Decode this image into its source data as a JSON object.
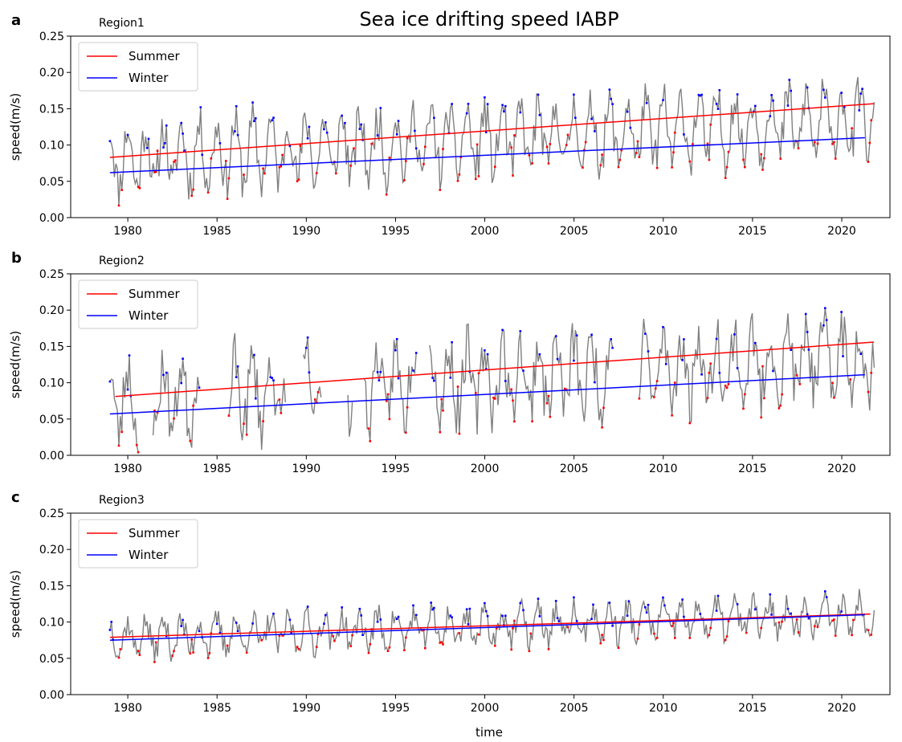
{
  "figure": {
    "title": "Sea ice drifting speed IABP",
    "xlabel": "time"
  },
  "colors": {
    "summer": "#ff0000",
    "winter": "#0000ff",
    "raw": "#808080",
    "axis": "#000000"
  },
  "chart_data": [
    {
      "type": "line",
      "panel_letter": "a",
      "region_label": "Region1",
      "ylabel": "speed(m/s)",
      "xlim": [
        1976.8,
        2022.7
      ],
      "ylim": [
        0.0,
        0.25
      ],
      "xticks": [
        1980,
        1985,
        1990,
        1995,
        2000,
        2005,
        2010,
        2015,
        2020
      ],
      "yticks": [
        0.0,
        0.05,
        0.1,
        0.15,
        0.2,
        0.25
      ],
      "legend": {
        "placement": "upper-left",
        "entries": [
          "Summer",
          "Winter"
        ]
      },
      "series": [
        {
          "name": "Summer",
          "kind": "trend",
          "x": [
            1979.0,
            2021.8
          ],
          "values": [
            0.083,
            0.157
          ]
        },
        {
          "name": "Winter",
          "kind": "trend",
          "x": [
            1979.0,
            2021.3
          ],
          "values": [
            0.062,
            0.11
          ]
        }
      ],
      "monthly": {
        "x_start": 1979.0,
        "x_step": 0.0833,
        "count": 515,
        "mean_start": 0.081,
        "mean_end": 0.135,
        "amplitude": 0.04,
        "noise": 0.03,
        "gaps": [],
        "seed": 11
      }
    },
    {
      "type": "line",
      "panel_letter": "b",
      "region_label": "Region2",
      "ylabel": "speed(m/s)",
      "xlim": [
        1976.8,
        2022.7
      ],
      "ylim": [
        0.0,
        0.25
      ],
      "xticks": [
        1980,
        1985,
        1990,
        1995,
        2000,
        2005,
        2010,
        2015,
        2020
      ],
      "yticks": [
        0.0,
        0.05,
        0.1,
        0.15,
        0.2,
        0.25
      ],
      "legend": {
        "placement": "upper-left",
        "entries": [
          "Summer",
          "Winter"
        ]
      },
      "series": [
        {
          "name": "Summer",
          "kind": "trend",
          "x": [
            1979.3,
            2021.8
          ],
          "values": [
            0.081,
            0.156
          ]
        },
        {
          "name": "Winter",
          "kind": "trend",
          "x": [
            1979.0,
            2021.3
          ],
          "values": [
            0.057,
            0.111
          ]
        }
      ],
      "monthly": {
        "x_start": 1979.0,
        "x_step": 0.0833,
        "count": 515,
        "mean_start": 0.076,
        "mean_end": 0.135,
        "amplitude": 0.045,
        "noise": 0.038,
        "gaps": [
          [
            1980.6,
            1981.4
          ],
          [
            1984.0,
            1985.6
          ],
          [
            1988.9,
            1989.8
          ],
          [
            1990.9,
            1992.3
          ],
          [
            1992.6,
            1993.2
          ],
          [
            1996.2,
            1996.9
          ],
          [
            2007.2,
            2008.6
          ]
        ],
        "seed": 23
      }
    },
    {
      "type": "line",
      "panel_letter": "c",
      "region_label": "Region3",
      "ylabel": "speed(m/s)",
      "xlim": [
        1976.8,
        2022.7
      ],
      "ylim": [
        0.0,
        0.25
      ],
      "xticks": [
        1980,
        1985,
        1990,
        1995,
        2000,
        2005,
        2010,
        2015,
        2020
      ],
      "yticks": [
        0.0,
        0.05,
        0.1,
        0.15,
        0.2,
        0.25
      ],
      "legend": {
        "placement": "upper-left",
        "entries": [
          "Summer",
          "Winter"
        ]
      },
      "series": [
        {
          "name": "Summer",
          "kind": "trend",
          "x": [
            1979.0,
            2021.6
          ],
          "values": [
            0.079,
            0.111
          ]
        },
        {
          "name": "Winter",
          "kind": "trend",
          "x": [
            1979.0,
            2021.3
          ],
          "values": [
            0.075,
            0.11
          ]
        }
      ],
      "monthly": {
        "x_start": 1979.0,
        "x_step": 0.0833,
        "count": 515,
        "mean_start": 0.078,
        "mean_end": 0.111,
        "amplitude": 0.02,
        "noise": 0.018,
        "gaps": [],
        "seed": 37
      }
    }
  ]
}
